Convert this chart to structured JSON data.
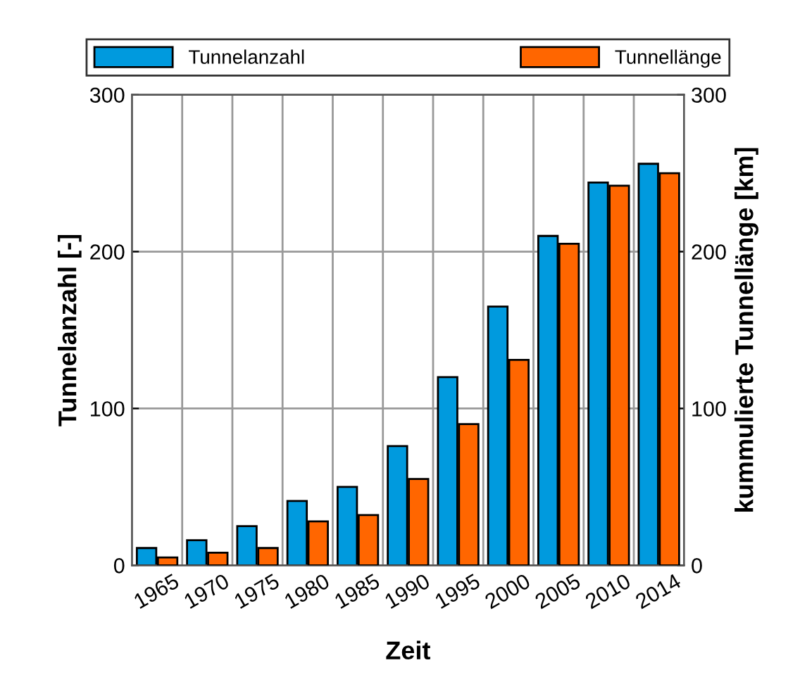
{
  "chart_data": {
    "type": "bar",
    "categories": [
      "1965",
      "1970",
      "1975",
      "1980",
      "1985",
      "1990",
      "1995",
      "2000",
      "2005",
      "2010",
      "2014"
    ],
    "series": [
      {
        "name": "Tunnelanzahl",
        "color": "#009ade",
        "values": [
          11,
          16,
          25,
          41,
          50,
          76,
          120,
          165,
          210,
          244,
          256
        ]
      },
      {
        "name": "Tunnellänge",
        "color": "#ff6600",
        "axis": "y2",
        "values": [
          5,
          8,
          11,
          28,
          32,
          55,
          90,
          131,
          205,
          242,
          250
        ]
      }
    ],
    "xlabel": "Zeit",
    "ylabel": "Tunnelanzahl [-]",
    "y2label": "kummulierte Tunnellänge [km]",
    "ylim": [
      0,
      300
    ],
    "yticks": [
      0,
      100,
      200,
      300
    ],
    "y2lim": [
      0,
      300
    ],
    "y2ticks": [
      0,
      100,
      200,
      300
    ],
    "grid": true,
    "legend": "top"
  }
}
